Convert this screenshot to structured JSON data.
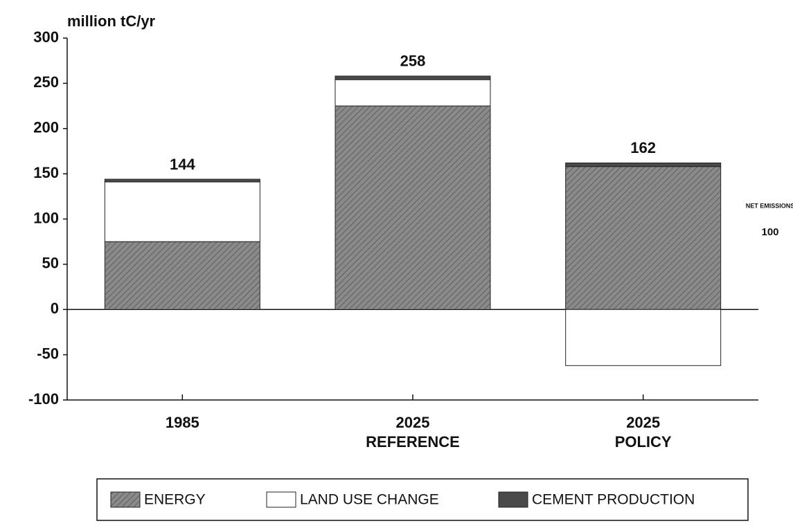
{
  "chart_data": {
    "type": "stacked-bar",
    "y_label": "million tC/yr",
    "categories": [
      [
        "1985"
      ],
      [
        "2025",
        "REFERENCE"
      ],
      [
        "2025",
        "POLICY"
      ]
    ],
    "series": [
      {
        "name": "ENERGY",
        "color": "#8a8a8a",
        "values": [
          75,
          225,
          158
        ]
      },
      {
        "name": "LAND USE CHANGE",
        "color": "#ffffff",
        "values": [
          66,
          29,
          -62
        ]
      },
      {
        "name": "CEMENT PRODUCTION",
        "color": "#4a4a4a",
        "values": [
          3,
          4,
          4
        ]
      }
    ],
    "totals": [
      144,
      258,
      162
    ],
    "annotation": {
      "text": "NET EMISSIONS",
      "value": 100
    },
    "ylim": [
      -100,
      300
    ],
    "yticks": [
      -100,
      -50,
      0,
      50,
      100,
      150,
      200,
      250,
      300
    ],
    "grid": false,
    "legend": "bottom"
  }
}
